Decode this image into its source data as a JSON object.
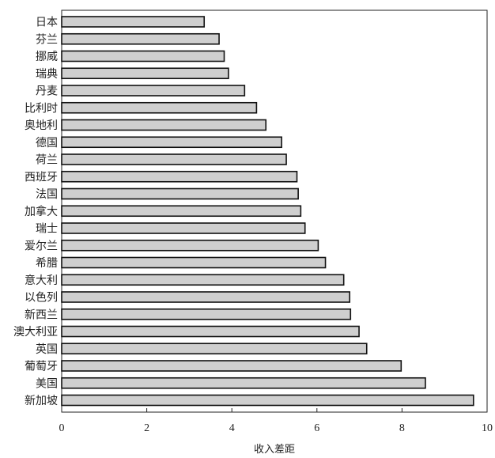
{
  "chart_data": {
    "type": "bar",
    "orientation": "horizontal",
    "categories": [
      "日本",
      "芬兰",
      "挪威",
      "瑞典",
      "丹麦",
      "比利时",
      "奥地利",
      "德国",
      "荷兰",
      "西班牙",
      "法国",
      "加拿大",
      "瑞士",
      "爱尔兰",
      "希腊",
      "意大利",
      "以色列",
      "新西兰",
      "澳大利亚",
      "英国",
      "葡萄牙",
      "美国",
      "新加坡"
    ],
    "values": [
      3.35,
      3.7,
      3.82,
      3.92,
      4.3,
      4.58,
      4.8,
      5.17,
      5.28,
      5.53,
      5.56,
      5.62,
      5.72,
      6.03,
      6.2,
      6.63,
      6.77,
      6.79,
      6.99,
      7.17,
      7.98,
      8.55,
      9.68
    ],
    "xlabel": "收入差距",
    "ylabel": "",
    "title": "",
    "xlim": [
      0,
      10
    ],
    "xticks": [
      "0",
      "2",
      "4",
      "6",
      "8",
      "10"
    ],
    "grid": false,
    "legend": "none",
    "bar_fill": "#cfcfcf",
    "bar_stroke": "#111111"
  }
}
